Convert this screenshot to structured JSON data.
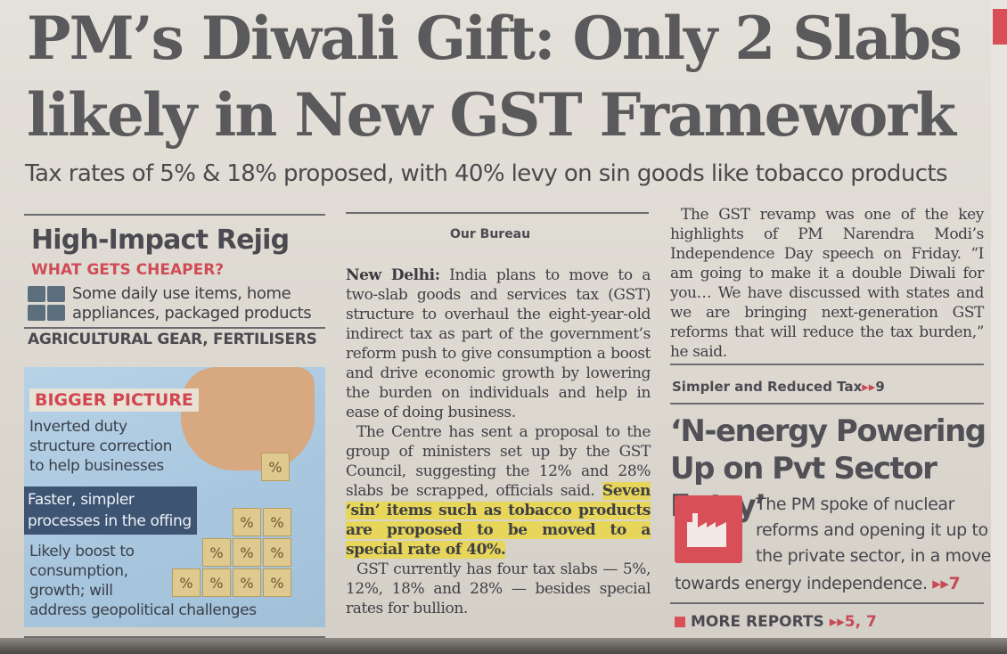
{
  "headline": {
    "line1": "PM’s Diwali Gift: Only 2 Slabs",
    "line2": "likely in New GST Framework"
  },
  "subhead": "Tax rates of 5% & 18% proposed, with 40% levy on sin goods like tobacco products",
  "left": {
    "title": "High-Impact Rejig",
    "cheaper_heading": "WHAT GETS CHEAPER?",
    "cheaper_line1": "Some daily use items, home",
    "cheaper_line2": "appliances, packaged products",
    "agri": "AGRICULTURAL GEAR, FERTILISERS",
    "bigger_tag": "BIGGER PICTURE",
    "point1_l1": "Inverted duty",
    "point1_l2": "structure correction",
    "point1_l3": "to help businesses",
    "point2_l1": "Faster, simpler",
    "point2_l2": "processes in the offing",
    "point3_l1": "Likely boost to",
    "point3_l2": "consumption,",
    "point3_l3": "growth; will",
    "point3_l4": "address geopolitical challenges",
    "cube_symbol": "%"
  },
  "middle": {
    "byline": "Our Bureau",
    "dateline": "New Delhi:",
    "p1": "India plans to move to a two-slab goods and services tax (GST) structure to overhaul the eight-year-old indirect tax as part of the government’s reform push to give consumption a boost and drive economic growth by lowering the burden on individuals and help in ease of doing business.",
    "p2": "The Centre has sent a proposal to the group of ministers set up by the GST Council, suggesting the 12% and 28% slabs be scrapped, officials said.",
    "p2_highlight": "Seven ‘sin’ items such as tobacco products are proposed to be moved to a special rate of 40%.",
    "p3": "GST currently has four tax slabs — 5%, 12%, 18% and 28% — besides special rates for bullion."
  },
  "right": {
    "p1": "The GST revamp was one of the key highlights of PM Narendra Modi’s Independence Day speech on Friday. “I am going to make it a double Diwali for you… We have discussed with states and we are bringing next-generation GST reforms that will reduce the tax burden,” he said.",
    "simpler_label": "Simpler and Reduced Tax",
    "simpler_ref": "9",
    "energy_headline": "‘N-energy Powering Up on Pvt Sector Entry’",
    "energy_text": "The PM spoke of nuclear reforms and opening it up to the private sector, in a move",
    "energy_end": "towards energy independence.",
    "energy_ref": "7",
    "more_label": "MORE REPORTS",
    "more_ref": "5, 7",
    "arrow": "▸▸"
  },
  "colors": {
    "accent_red": "#d84f57",
    "highlight": "#e7d65a",
    "panel_blue": "#a8c7df"
  }
}
